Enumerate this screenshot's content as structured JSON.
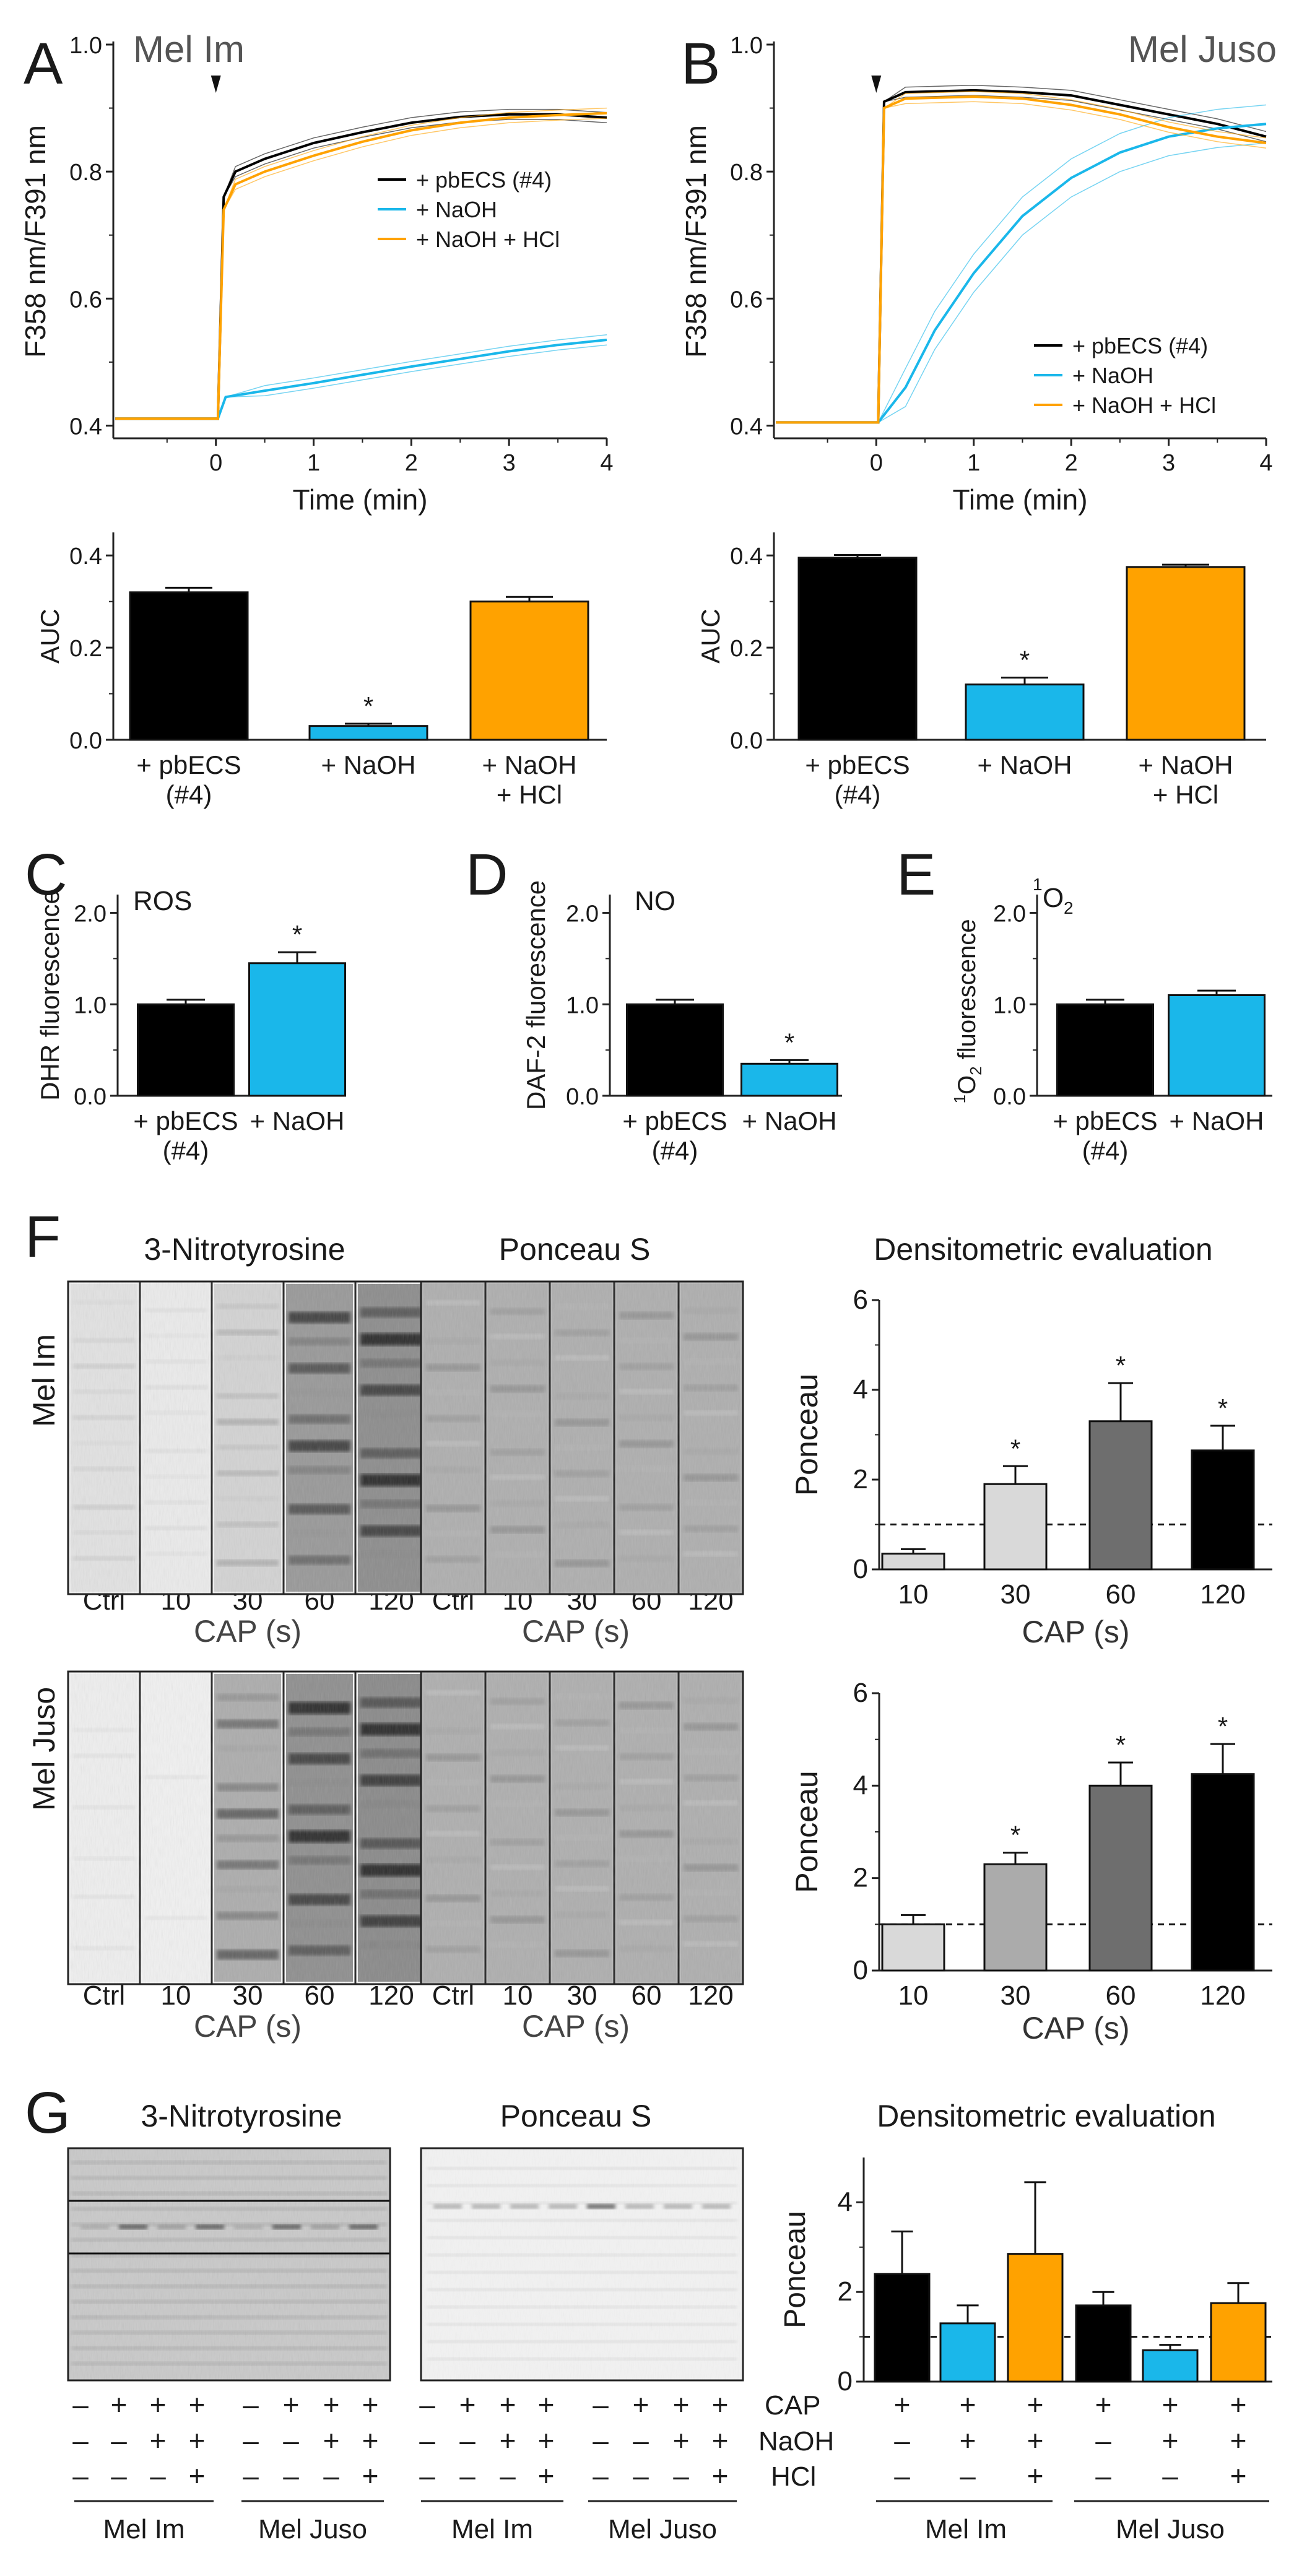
{
  "colors": {
    "black": "#000000",
    "cyan": "#1ab7ea",
    "orange": "#ffa200",
    "lightgray": "#d9d9d9",
    "midgray": "#ababab",
    "darkgray": "#6e6e6e",
    "text": "#1a1a1a"
  },
  "labels": {
    "A": "A",
    "B": "B",
    "C": "C",
    "D": "D",
    "E": "E",
    "F": "F",
    "G": "G",
    "mel_im": "Mel Im",
    "mel_juso": "Mel Juso",
    "ratio_axis": "F358 nm/F391 nm",
    "time_axis": "Time (min)",
    "auc": "AUC",
    "leg_pbecs": "+ pbECS (#4)",
    "leg_naoh": "+ NaOH",
    "leg_naohhcl": "+ NaOH + HCl",
    "pbecs_1": "+ pbECS",
    "pbecs_2": "(#4)",
    "naoh": "+ NaOH",
    "naohhcl_1": "+ NaOH",
    "naohhcl_2": "+ HCl",
    "ros": "ROS",
    "no": "NO",
    "o2_sup": "1",
    "o2_main": "O",
    "o2_sub": "2",
    "dhr_axis": "DHR fluorescence",
    "daf_axis": "DAF-2 fluorescence",
    "o2_axis_rest": "O fluorescence",
    "nitro": "3-Nitrotyrosine",
    "ponceau_s": "Ponceau S",
    "densito": "Densitometric evaluation",
    "ponceau_axis": "Ponceau",
    "cap_s": "CAP (s)",
    "star": "*",
    "cap": "CAP",
    "naoh_row": "NaOH",
    "hcl_row": "HCl",
    "plus": "+",
    "minus": "–"
  },
  "blot_lanes": [
    "Ctrl",
    "10",
    "30",
    "60",
    "120"
  ],
  "g_signs": {
    "cap": [
      "–",
      "+",
      "+",
      "+",
      "–",
      "+",
      "+",
      "+"
    ],
    "naoh": [
      "–",
      "–",
      "+",
      "+",
      "–",
      "–",
      "+",
      "+"
    ],
    "hcl": [
      "–",
      "–",
      "–",
      "+",
      "–",
      "–",
      "–",
      "+"
    ]
  },
  "chart_data": [
    {
      "id": "A_trace",
      "type": "line",
      "title": "Mel Im",
      "xlabel": "Time (min)",
      "ylabel": "F358 nm/F391 nm",
      "xlim": [
        -1.05,
        4
      ],
      "ylim": [
        0.38,
        1.0
      ],
      "xticks": [
        0,
        1,
        2,
        3,
        4
      ],
      "yticks": [
        0.4,
        0.6,
        0.8,
        1.0
      ],
      "series": [
        {
          "name": "+ pbECS (#4)",
          "color": "black",
          "baseline": 0.411,
          "points": [
            [
              0.02,
              0.411
            ],
            [
              0.08,
              0.76
            ],
            [
              0.2,
              0.8
            ],
            [
              0.5,
              0.82
            ],
            [
              1,
              0.845
            ],
            [
              1.5,
              0.862
            ],
            [
              2,
              0.877
            ],
            [
              2.5,
              0.886
            ],
            [
              3,
              0.89
            ],
            [
              3.5,
              0.89
            ],
            [
              4,
              0.885
            ]
          ]
        },
        {
          "name": "+ NaOH",
          "color": "cyan",
          "baseline": 0.411,
          "points": [
            [
              0.02,
              0.411
            ],
            [
              0.1,
              0.445
            ],
            [
              0.5,
              0.455
            ],
            [
              1,
              0.467
            ],
            [
              1.5,
              0.48
            ],
            [
              2,
              0.493
            ],
            [
              2.5,
              0.505
            ],
            [
              3,
              0.517
            ],
            [
              3.5,
              0.527
            ],
            [
              4,
              0.535
            ]
          ]
        },
        {
          "name": "+ NaOH + HCl",
          "color": "orange",
          "baseline": 0.411,
          "points": [
            [
              0.02,
              0.411
            ],
            [
              0.08,
              0.74
            ],
            [
              0.2,
              0.78
            ],
            [
              0.5,
              0.8
            ],
            [
              1,
              0.825
            ],
            [
              1.5,
              0.847
            ],
            [
              2,
              0.865
            ],
            [
              2.5,
              0.877
            ],
            [
              3,
              0.885
            ],
            [
              3.5,
              0.889
            ],
            [
              4,
              0.892
            ]
          ]
        }
      ],
      "legend": "center-right"
    },
    {
      "id": "B_trace",
      "type": "line",
      "title": "Mel Juso",
      "xlabel": "Time (min)",
      "ylabel": "F358 nm/F391 nm",
      "xlim": [
        -1.05,
        4
      ],
      "ylim": [
        0.38,
        1.0
      ],
      "xticks": [
        0,
        1,
        2,
        3,
        4
      ],
      "yticks": [
        0.4,
        0.6,
        0.8,
        1.0
      ],
      "series": [
        {
          "name": "+ pbECS (#4)",
          "color": "black",
          "baseline": 0.405,
          "points": [
            [
              0.02,
              0.405
            ],
            [
              0.08,
              0.91
            ],
            [
              0.3,
              0.925
            ],
            [
              1,
              0.928
            ],
            [
              1.5,
              0.925
            ],
            [
              2,
              0.92
            ],
            [
              2.5,
              0.905
            ],
            [
              3,
              0.89
            ],
            [
              3.5,
              0.875
            ],
            [
              4,
              0.855
            ]
          ]
        },
        {
          "name": "+ NaOH",
          "color": "cyan",
          "baseline": 0.405,
          "points": [
            [
              0.02,
              0.405
            ],
            [
              0.3,
              0.46
            ],
            [
              0.6,
              0.55
            ],
            [
              1,
              0.64
            ],
            [
              1.5,
              0.73
            ],
            [
              2,
              0.79
            ],
            [
              2.5,
              0.83
            ],
            [
              3,
              0.855
            ],
            [
              3.5,
              0.868
            ],
            [
              4,
              0.875
            ]
          ]
        },
        {
          "name": "+ NaOH + HCl",
          "color": "orange",
          "baseline": 0.405,
          "points": [
            [
              0.02,
              0.405
            ],
            [
              0.08,
              0.9
            ],
            [
              0.3,
              0.915
            ],
            [
              1,
              0.918
            ],
            [
              1.5,
              0.915
            ],
            [
              2,
              0.905
            ],
            [
              2.5,
              0.89
            ],
            [
              3,
              0.87
            ],
            [
              3.5,
              0.855
            ],
            [
              4,
              0.845
            ]
          ]
        }
      ],
      "legend": "bottom-right"
    },
    {
      "id": "A_auc",
      "type": "bar",
      "ylabel": "AUC",
      "ylim": [
        0,
        0.45
      ],
      "yticks": [
        0,
        0.2,
        0.4
      ],
      "categories": [
        "+ pbECS (#4)",
        "+ NaOH",
        "+ NaOH + HCl"
      ],
      "values": [
        0.32,
        0.03,
        0.3
      ],
      "errors": [
        0.01,
        0.005,
        0.01
      ],
      "colors": [
        "black",
        "cyan",
        "orange"
      ],
      "significant": [
        false,
        true,
        false
      ]
    },
    {
      "id": "B_auc",
      "type": "bar",
      "ylabel": "AUC",
      "ylim": [
        0,
        0.45
      ],
      "yticks": [
        0,
        0.2,
        0.4
      ],
      "categories": [
        "+ pbECS (#4)",
        "+ NaOH",
        "+ NaOH + HCl"
      ],
      "values": [
        0.395,
        0.12,
        0.375
      ],
      "errors": [
        0.006,
        0.015,
        0.005
      ],
      "colors": [
        "black",
        "cyan",
        "orange"
      ],
      "significant": [
        false,
        true,
        false
      ]
    },
    {
      "id": "C",
      "type": "bar",
      "title": "ROS",
      "ylabel": "DHR fluorescence",
      "ylim": [
        0,
        2.2
      ],
      "yticks": [
        0,
        1.0,
        2.0
      ],
      "categories": [
        "+ pbECS (#4)",
        "+ NaOH"
      ],
      "values": [
        1.0,
        1.45
      ],
      "errors": [
        0.05,
        0.12
      ],
      "colors": [
        "black",
        "cyan"
      ],
      "significant": [
        false,
        true
      ]
    },
    {
      "id": "D",
      "type": "bar",
      "title": "NO",
      "ylabel": "DAF-2 fluorescence",
      "ylim": [
        0,
        2.2
      ],
      "yticks": [
        0,
        1.0,
        2.0
      ],
      "categories": [
        "+ pbECS (#4)",
        "+ NaOH"
      ],
      "values": [
        1.0,
        0.35
      ],
      "errors": [
        0.05,
        0.04
      ],
      "colors": [
        "black",
        "cyan"
      ],
      "significant": [
        false,
        true
      ]
    },
    {
      "id": "E",
      "type": "bar",
      "title": "1O2",
      "ylabel": "1O2 fluorescence",
      "ylim": [
        0,
        2.2
      ],
      "yticks": [
        0,
        1.0,
        2.0
      ],
      "categories": [
        "+ pbECS (#4)",
        "+ NaOH"
      ],
      "values": [
        1.0,
        1.1
      ],
      "errors": [
        0.05,
        0.05
      ],
      "colors": [
        "black",
        "cyan"
      ],
      "significant": [
        false,
        false
      ]
    },
    {
      "id": "F_im",
      "type": "bar",
      "title": "Densitometric evaluation",
      "xlabel": "CAP (s)",
      "ylabel": "Ponceau",
      "ylim": [
        0,
        6
      ],
      "yticks": [
        0,
        2,
        4,
        6
      ],
      "reference_line": 1,
      "categories": [
        "10",
        "30",
        "60",
        "120"
      ],
      "values": [
        0.35,
        1.9,
        3.3,
        2.65
      ],
      "errors": [
        0.1,
        0.4,
        0.85,
        0.55
      ],
      "colors": [
        "lightgray",
        "lightgray",
        "darkgray",
        "black"
      ],
      "significant": [
        false,
        true,
        true,
        true
      ]
    },
    {
      "id": "F_juso",
      "type": "bar",
      "xlabel": "CAP (s)",
      "ylabel": "Ponceau",
      "ylim": [
        0,
        6
      ],
      "yticks": [
        0,
        2,
        4,
        6
      ],
      "reference_line": 1,
      "categories": [
        "10",
        "30",
        "60",
        "120"
      ],
      "values": [
        1.0,
        2.3,
        4.0,
        4.25
      ],
      "errors": [
        0.2,
        0.25,
        0.5,
        0.65
      ],
      "colors": [
        "lightgray",
        "midgray",
        "darkgray",
        "black"
      ],
      "significant": [
        false,
        true,
        true,
        true
      ]
    },
    {
      "id": "G",
      "type": "bar",
      "title": "Densitometric evaluation",
      "ylabel": "Ponceau",
      "ylim": [
        0,
        5
      ],
      "yticks": [
        0,
        2,
        4
      ],
      "reference_line": 1,
      "groups": [
        "Mel Im",
        "Mel Juso"
      ],
      "categories": [
        "Mel Im CAP",
        "Mel Im CAP + NaOH",
        "Mel Im CAP + NaOH + HCl",
        "Mel Juso CAP",
        "Mel Juso CAP + NaOH",
        "Mel Juso CAP + NaOH + HCl"
      ],
      "values": [
        2.4,
        1.3,
        2.85,
        1.7,
        0.7,
        1.75
      ],
      "errors": [
        0.95,
        0.4,
        1.6,
        0.3,
        0.12,
        0.45
      ],
      "colors": [
        "black",
        "cyan",
        "orange",
        "black",
        "cyan",
        "orange"
      ],
      "significant": [
        false,
        false,
        false,
        false,
        false,
        false
      ]
    }
  ]
}
